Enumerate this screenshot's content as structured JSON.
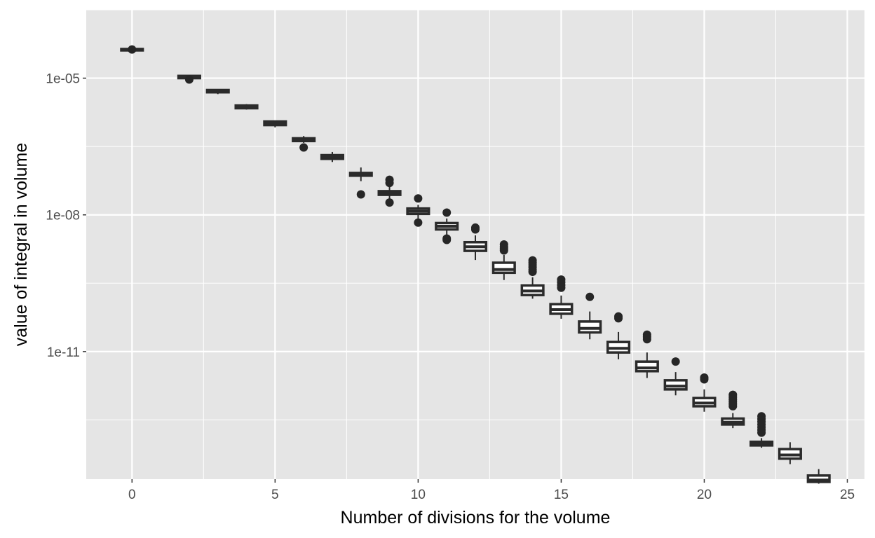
{
  "chart_data": {
    "type": "boxplot",
    "title": "",
    "xlabel": "Number of divisions for the volume",
    "ylabel": "value of integral in volume",
    "y_scale": "log10",
    "xlim": [
      -1.6,
      25.6
    ],
    "ylim_log10": [
      -13.8,
      -3.5
    ],
    "x_ticks": [
      0,
      5,
      10,
      15,
      20,
      25
    ],
    "x_tick_labels": [
      "0",
      "5",
      "10",
      "15",
      "20",
      "25"
    ],
    "y_ticks_log10": [
      -5,
      -8,
      -11
    ],
    "y_tick_labels": [
      "1e-05",
      "1e-08",
      "1e-11"
    ],
    "y_minor_log10": [
      -3.5,
      -6.5,
      -9.5,
      -12.5
    ],
    "x_minor": [
      2.5,
      7.5,
      12.5,
      17.5,
      22.5
    ],
    "boxes": [
      {
        "x": 0,
        "q1": -4.38,
        "med": -4.37,
        "q3": -4.36,
        "lo": -4.39,
        "hi": -4.35,
        "out": [
          -4.37
        ]
      },
      {
        "x": 2,
        "q1": -5.0,
        "med": -4.97,
        "q3": -4.95,
        "lo": -5.02,
        "hi": -4.95,
        "out": [
          -5.03
        ]
      },
      {
        "x": 3,
        "q1": -5.31,
        "med": -5.28,
        "q3": -5.26,
        "lo": -5.35,
        "hi": -5.26,
        "out": []
      },
      {
        "x": 4,
        "q1": -5.66,
        "med": -5.63,
        "q3": -5.6,
        "lo": -5.69,
        "hi": -5.57,
        "out": []
      },
      {
        "x": 5,
        "q1": -6.03,
        "med": -5.99,
        "q3": -5.95,
        "lo": -6.08,
        "hi": -5.93,
        "out": []
      },
      {
        "x": 6,
        "q1": -6.38,
        "med": -6.35,
        "q3": -6.32,
        "lo": -6.42,
        "hi": -6.27,
        "out": [
          -6.52
        ]
      },
      {
        "x": 7,
        "q1": -6.77,
        "med": -6.73,
        "q3": -6.69,
        "lo": -6.84,
        "hi": -6.62,
        "out": []
      },
      {
        "x": 8,
        "q1": -7.14,
        "med": -7.11,
        "q3": -7.08,
        "lo": -7.26,
        "hi": -6.96,
        "out": [
          -7.55
        ]
      },
      {
        "x": 9,
        "q1": -7.56,
        "med": -7.52,
        "q3": -7.48,
        "lo": -7.68,
        "hi": -7.38,
        "out": [
          -7.3,
          -7.23,
          -7.73
        ]
      },
      {
        "x": 10,
        "q1": -7.98,
        "med": -7.92,
        "q3": -7.86,
        "lo": -8.08,
        "hi": -7.78,
        "out": [
          -7.64,
          -8.17
        ]
      },
      {
        "x": 11,
        "q1": -8.32,
        "med": -8.25,
        "q3": -8.18,
        "lo": -8.43,
        "hi": -8.08,
        "out": [
          -7.95,
          -8.52,
          -8.55
        ]
      },
      {
        "x": 12,
        "q1": -8.79,
        "med": -8.7,
        "q3": -8.6,
        "lo": -8.99,
        "hi": -8.45,
        "out": [
          -8.28,
          -8.32
        ]
      },
      {
        "x": 13,
        "q1": -9.27,
        "med": -9.2,
        "q3": -9.05,
        "lo": -9.43,
        "hi": -8.88,
        "out": [
          -8.65,
          -8.7,
          -8.74,
          -8.78
        ]
      },
      {
        "x": 14,
        "q1": -9.76,
        "med": -9.67,
        "q3": -9.55,
        "lo": -9.84,
        "hi": -9.37,
        "out": [
          -9.0,
          -9.05,
          -9.1,
          -9.15,
          -9.2,
          -9.25
        ]
      },
      {
        "x": 15,
        "q1": -10.17,
        "med": -10.08,
        "q3": -9.96,
        "lo": -10.28,
        "hi": -9.77,
        "out": [
          -9.42,
          -9.48,
          -9.54,
          -9.6
        ]
      },
      {
        "x": 16,
        "q1": -10.58,
        "med": -10.49,
        "q3": -10.34,
        "lo": -10.73,
        "hi": -10.12,
        "out": [
          -9.8
        ]
      },
      {
        "x": 17,
        "q1": -11.02,
        "med": -10.93,
        "q3": -10.79,
        "lo": -11.17,
        "hi": -10.57,
        "out": [
          -10.23,
          -10.27
        ]
      },
      {
        "x": 18,
        "q1": -11.43,
        "med": -11.36,
        "q3": -11.22,
        "lo": -11.58,
        "hi": -11.02,
        "out": [
          -10.63,
          -10.68,
          -10.73
        ]
      },
      {
        "x": 19,
        "q1": -11.83,
        "med": -11.76,
        "q3": -11.63,
        "lo": -11.96,
        "hi": -11.45,
        "out": [
          -11.22
        ]
      },
      {
        "x": 20,
        "q1": -12.2,
        "med": -12.13,
        "q3": -12.02,
        "lo": -12.32,
        "hi": -11.83,
        "out": [
          -11.57,
          -11.61
        ]
      },
      {
        "x": 21,
        "q1": -12.6,
        "med": -12.55,
        "q3": -12.47,
        "lo": -12.68,
        "hi": -12.35,
        "out": [
          -11.95,
          -12.0,
          -12.05,
          -12.1,
          -12.15,
          -12.2
        ]
      },
      {
        "x": 22,
        "q1": -13.06,
        "med": -13.02,
        "q3": -12.98,
        "lo": -13.11,
        "hi": -12.9,
        "out": [
          -12.42,
          -12.48,
          -12.54,
          -12.6,
          -12.66,
          -12.72,
          -12.78
        ]
      },
      {
        "x": 23,
        "q1": -13.35,
        "med": -13.27,
        "q3": -13.14,
        "lo": -13.47,
        "hi": -12.99,
        "out": []
      },
      {
        "x": 24,
        "q1": -13.86,
        "med": -13.82,
        "q3": -13.72,
        "lo": -13.9,
        "hi": -13.58,
        "out": []
      }
    ]
  },
  "colors": {
    "panel": "#e5e5e5",
    "grid_major": "#ffffff",
    "box_fill": "#ffffff",
    "box_line": "#2b2b2b",
    "outlier": "#262626"
  }
}
